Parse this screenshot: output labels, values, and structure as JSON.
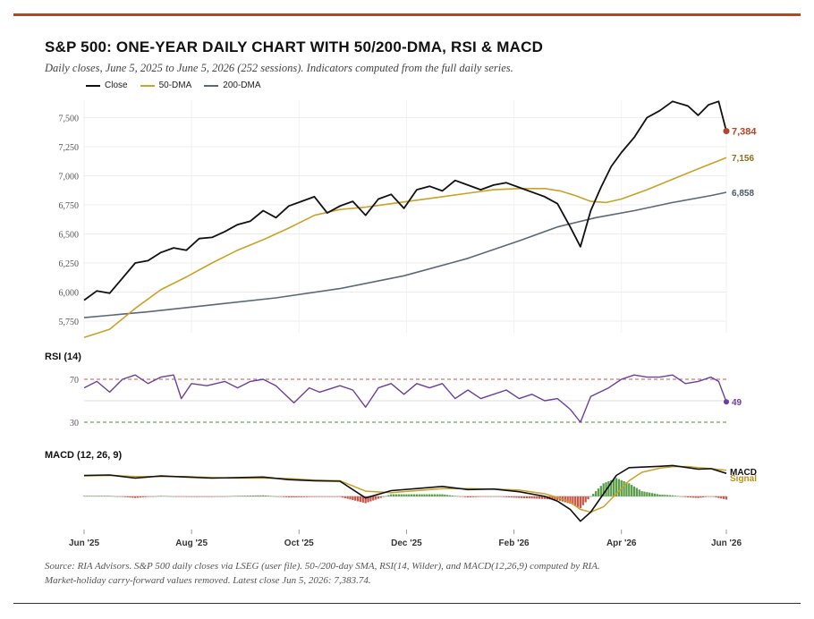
{
  "title": "S&P 500: ONE-YEAR DAILY CHART WITH 50/200-DMA, RSI & MACD",
  "subtitle": "Daily closes, June 5, 2025 to June 5, 2026 (252 sessions). Indicators computed from the full daily series.",
  "legend": [
    {
      "label": "Close",
      "color": "#111111"
    },
    {
      "label": "50-DMA",
      "color": "#c9a227"
    },
    {
      "label": "200-DMA",
      "color": "#5a6878"
    }
  ],
  "source_line1": "Source: RIA Advisors. S&P 500 daily closes via LSEG (user file). 50-/200-day SMA, RSI(14, Wilder), and MACD(12,26,9) computed by RIA.",
  "source_line2": "Market-holiday carry-forward values removed. Latest close Jun 5, 2026: 7,383.74.",
  "colors": {
    "accent": "#b5442a",
    "close": "#111111",
    "dma50": "#c9a227",
    "dma200": "#5a6878",
    "rsi": "#6b3fa0",
    "macd": "#111111",
    "signal": "#c9a227",
    "hist_pos": "#5a9e4a",
    "hist_neg": "#c9584a"
  },
  "chart_data": [
    {
      "type": "line",
      "panel": "price",
      "x_ticks": [
        "Jun '25",
        "Aug '25",
        "Oct '25",
        "Dec '25",
        "Feb '26",
        "Apr '26",
        "Jun '26"
      ],
      "y_ticks": [
        "5,750",
        "6,000",
        "6,250",
        "6,500",
        "6,750",
        "7,000",
        "7,250",
        "7,500"
      ],
      "ylim": [
        5650,
        7650
      ],
      "grid": true,
      "legend_position": "top-left",
      "end_labels": {
        "close": "7,384",
        "dma50": "7,156",
        "dma200": "6,858"
      },
      "series": [
        {
          "name": "Close",
          "points": [
            [
              0,
              5930
            ],
            [
              5,
              6010
            ],
            [
              10,
              5990
            ],
            [
              15,
              6120
            ],
            [
              20,
              6250
            ],
            [
              25,
              6270
            ],
            [
              30,
              6340
            ],
            [
              35,
              6380
            ],
            [
              40,
              6360
            ],
            [
              45,
              6460
            ],
            [
              50,
              6470
            ],
            [
              55,
              6520
            ],
            [
              60,
              6580
            ],
            [
              65,
              6610
            ],
            [
              70,
              6700
            ],
            [
              75,
              6640
            ],
            [
              80,
              6740
            ],
            [
              85,
              6780
            ],
            [
              90,
              6820
            ],
            [
              95,
              6680
            ],
            [
              100,
              6740
            ],
            [
              105,
              6780
            ],
            [
              110,
              6660
            ],
            [
              115,
              6800
            ],
            [
              120,
              6840
            ],
            [
              125,
              6720
            ],
            [
              130,
              6880
            ],
            [
              135,
              6910
            ],
            [
              140,
              6870
            ],
            [
              145,
              6960
            ],
            [
              150,
              6920
            ],
            [
              155,
              6880
            ],
            [
              160,
              6920
            ],
            [
              165,
              6940
            ],
            [
              170,
              6900
            ],
            [
              175,
              6860
            ],
            [
              180,
              6820
            ],
            [
              185,
              6760
            ],
            [
              190,
              6560
            ],
            [
              194,
              6390
            ],
            [
              198,
              6700
            ],
            [
              202,
              6900
            ],
            [
              206,
              7080
            ],
            [
              210,
              7200
            ],
            [
              215,
              7330
            ],
            [
              220,
              7500
            ],
            [
              225,
              7560
            ],
            [
              230,
              7640
            ],
            [
              236,
              7600
            ],
            [
              240,
              7520
            ],
            [
              244,
              7610
            ],
            [
              248,
              7640
            ],
            [
              251,
              7384
            ]
          ]
        },
        {
          "name": "50-DMA",
          "points": [
            [
              0,
              5610
            ],
            [
              10,
              5680
            ],
            [
              20,
              5860
            ],
            [
              30,
              6020
            ],
            [
              40,
              6130
            ],
            [
              50,
              6250
            ],
            [
              60,
              6360
            ],
            [
              70,
              6450
            ],
            [
              80,
              6550
            ],
            [
              90,
              6660
            ],
            [
              100,
              6710
            ],
            [
              110,
              6730
            ],
            [
              120,
              6760
            ],
            [
              130,
              6790
            ],
            [
              140,
              6820
            ],
            [
              150,
              6850
            ],
            [
              160,
              6880
            ],
            [
              170,
              6890
            ],
            [
              180,
              6890
            ],
            [
              186,
              6870
            ],
            [
              192,
              6830
            ],
            [
              198,
              6780
            ],
            [
              204,
              6770
            ],
            [
              210,
              6800
            ],
            [
              220,
              6880
            ],
            [
              230,
              6970
            ],
            [
              240,
              7060
            ],
            [
              251,
              7156
            ]
          ]
        },
        {
          "name": "200-DMA",
          "points": [
            [
              0,
              5780
            ],
            [
              25,
              5830
            ],
            [
              50,
              5890
            ],
            [
              75,
              5950
            ],
            [
              100,
              6030
            ],
            [
              125,
              6140
            ],
            [
              150,
              6290
            ],
            [
              170,
              6440
            ],
            [
              185,
              6560
            ],
            [
              200,
              6640
            ],
            [
              215,
              6700
            ],
            [
              230,
              6770
            ],
            [
              245,
              6830
            ],
            [
              251,
              6858
            ]
          ]
        }
      ]
    },
    {
      "type": "line",
      "panel": "rsi",
      "title": "RSI (14)",
      "ylim": [
        20,
        80
      ],
      "y_ticks": [
        "30",
        "70"
      ],
      "reference_lines": [
        70,
        30
      ],
      "end_label": "49",
      "series": [
        {
          "name": "RSI (14)",
          "points": [
            [
              0,
              62
            ],
            [
              5,
              68
            ],
            [
              10,
              58
            ],
            [
              15,
              70
            ],
            [
              20,
              74
            ],
            [
              25,
              66
            ],
            [
              30,
              72
            ],
            [
              35,
              74
            ],
            [
              38,
              52
            ],
            [
              42,
              66
            ],
            [
              48,
              64
            ],
            [
              55,
              68
            ],
            [
              60,
              62
            ],
            [
              65,
              68
            ],
            [
              70,
              70
            ],
            [
              75,
              64
            ],
            [
              82,
              48
            ],
            [
              88,
              62
            ],
            [
              92,
              58
            ],
            [
              100,
              64
            ],
            [
              105,
              60
            ],
            [
              110,
              44
            ],
            [
              115,
              62
            ],
            [
              120,
              66
            ],
            [
              125,
              56
            ],
            [
              130,
              66
            ],
            [
              135,
              62
            ],
            [
              140,
              66
            ],
            [
              145,
              52
            ],
            [
              150,
              60
            ],
            [
              155,
              52
            ],
            [
              160,
              56
            ],
            [
              165,
              60
            ],
            [
              170,
              52
            ],
            [
              175,
              56
            ],
            [
              180,
              50
            ],
            [
              185,
              52
            ],
            [
              190,
              42
            ],
            [
              194,
              30
            ],
            [
              198,
              54
            ],
            [
              205,
              62
            ],
            [
              210,
              70
            ],
            [
              215,
              74
            ],
            [
              220,
              72
            ],
            [
              225,
              72
            ],
            [
              230,
              74
            ],
            [
              235,
              66
            ],
            [
              240,
              68
            ],
            [
              245,
              72
            ],
            [
              248,
              68
            ],
            [
              251,
              49
            ]
          ]
        }
      ]
    },
    {
      "type": "line",
      "panel": "macd",
      "title": "MACD (12, 26, 9)",
      "ylim": [
        -120,
        140
      ],
      "end_labels": {
        "macd": "MACD",
        "signal": "Signal"
      },
      "series": [
        {
          "name": "MACD",
          "points": [
            [
              0,
              80
            ],
            [
              10,
              82
            ],
            [
              20,
              70
            ],
            [
              30,
              78
            ],
            [
              40,
              74
            ],
            [
              50,
              70
            ],
            [
              60,
              72
            ],
            [
              70,
              74
            ],
            [
              80,
              64
            ],
            [
              90,
              60
            ],
            [
              100,
              58
            ],
            [
              110,
              -6
            ],
            [
              120,
              22
            ],
            [
              130,
              30
            ],
            [
              140,
              38
            ],
            [
              150,
              26
            ],
            [
              160,
              28
            ],
            [
              170,
              18
            ],
            [
              180,
              0
            ],
            [
              185,
              -18
            ],
            [
              190,
              -50
            ],
            [
              194,
              -95
            ],
            [
              198,
              -60
            ],
            [
              203,
              10
            ],
            [
              208,
              80
            ],
            [
              213,
              110
            ],
            [
              218,
              112
            ],
            [
              225,
              115
            ],
            [
              230,
              118
            ],
            [
              236,
              110
            ],
            [
              240,
              104
            ],
            [
              245,
              106
            ],
            [
              251,
              88
            ]
          ]
        },
        {
          "name": "Signal",
          "points": [
            [
              0,
              78
            ],
            [
              10,
              80
            ],
            [
              20,
              76
            ],
            [
              30,
              76
            ],
            [
              40,
              76
            ],
            [
              50,
              72
            ],
            [
              60,
              70
            ],
            [
              70,
              70
            ],
            [
              80,
              68
            ],
            [
              90,
              62
            ],
            [
              100,
              60
            ],
            [
              110,
              20
            ],
            [
              120,
              14
            ],
            [
              130,
              22
            ],
            [
              140,
              30
            ],
            [
              150,
              30
            ],
            [
              160,
              28
            ],
            [
              170,
              24
            ],
            [
              180,
              10
            ],
            [
              185,
              -4
            ],
            [
              190,
              -22
            ],
            [
              194,
              -50
            ],
            [
              198,
              -60
            ],
            [
              203,
              -40
            ],
            [
              208,
              10
            ],
            [
              213,
              60
            ],
            [
              218,
              92
            ],
            [
              225,
              108
            ],
            [
              230,
              114
            ],
            [
              236,
              114
            ],
            [
              240,
              110
            ],
            [
              245,
              106
            ],
            [
              251,
              100
            ]
          ]
        }
      ]
    }
  ]
}
